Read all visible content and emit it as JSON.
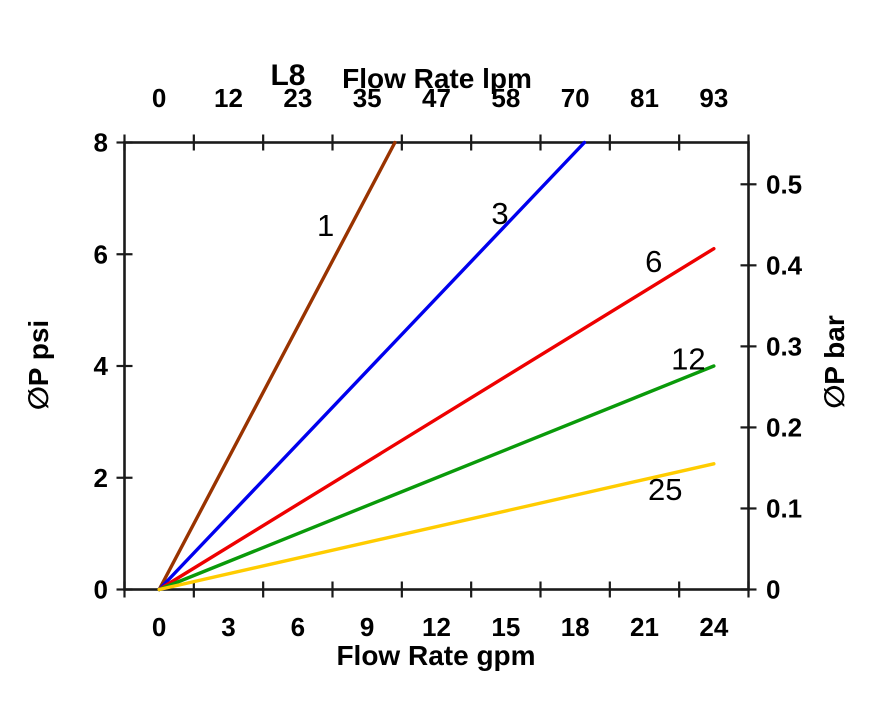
{
  "chart_data": {
    "type": "line",
    "title": "L8",
    "grid": false,
    "legend": "inline-labels-on-lines",
    "background": "#ffffff",
    "axis_color": "#1a1a1a",
    "top_axis": {
      "label": "Flow Rate lpm",
      "tick_labels": [
        "0",
        "12",
        "23",
        "35",
        "47",
        "58",
        "70",
        "81",
        "93"
      ]
    },
    "bottom_axis": {
      "label": "Flow Rate gpm",
      "tick_labels": [
        "0",
        "3",
        "6",
        "9",
        "12",
        "15",
        "18",
        "21",
        "24"
      ],
      "values": [
        0,
        3,
        6,
        9,
        12,
        15,
        18,
        21,
        24
      ]
    },
    "left_axis": {
      "label": "∅P psi",
      "ticks": [
        0,
        2,
        4,
        6,
        8
      ],
      "min": 0,
      "max": 8
    },
    "right_axis": {
      "label": "∅P bar",
      "tick_labels": [
        "0",
        "0.1",
        "0.2",
        "0.3",
        "0.4",
        "0.5"
      ],
      "tick_values": [
        0,
        0.1,
        0.2,
        0.3,
        0.4,
        0.5
      ],
      "psi_per_bar": 14.504
    },
    "series": [
      {
        "name": "1",
        "color": "#993300",
        "points": [
          [
            0,
            0
          ],
          [
            10.2,
            8
          ]
        ],
        "label_at": [
          7.2,
          6.52
        ]
      },
      {
        "name": "3",
        "color": "#0000EE",
        "points": [
          [
            0,
            0
          ],
          [
            18.4,
            8
          ]
        ],
        "label_at": [
          14.75,
          6.74
        ]
      },
      {
        "name": "6",
        "color": "#EE0000",
        "points": [
          [
            0,
            0
          ],
          [
            24,
            6.1
          ]
        ],
        "label_at": [
          21.4,
          5.88
        ]
      },
      {
        "name": "12",
        "color": "#0A9A0A",
        "points": [
          [
            0,
            0
          ],
          [
            24,
            4.0
          ]
        ],
        "label_at": [
          22.9,
          4.13
        ]
      },
      {
        "name": "25",
        "color": "#FFCC00",
        "points": [
          [
            0,
            0
          ],
          [
            24,
            2.25
          ]
        ],
        "label_at": [
          21.9,
          1.8
        ]
      }
    ]
  }
}
